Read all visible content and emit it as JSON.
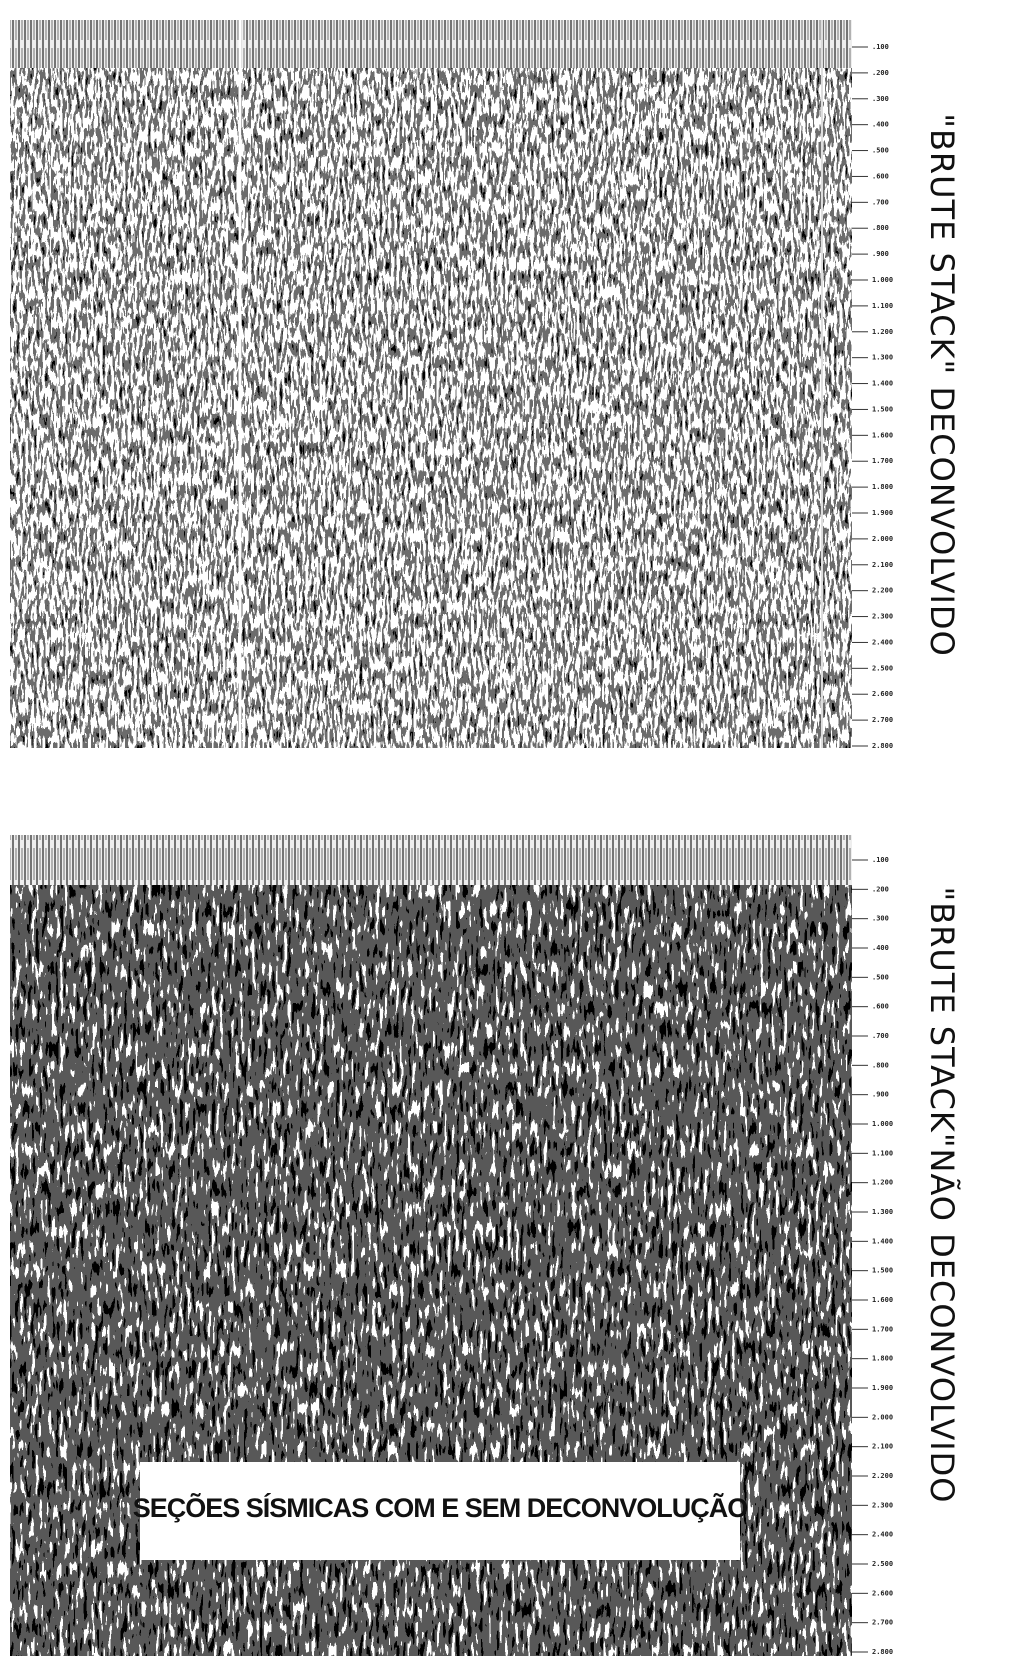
{
  "panels": [
    {
      "title": "\"BRUTE STACK\" DECONVOLVIDO",
      "time_labels": [
        ".100",
        ".200",
        ".300",
        ".400",
        ".500",
        ".600",
        ".700",
        ".800",
        ".900",
        "1.000",
        "1.100",
        "1.200",
        "1.300",
        "1.400",
        "1.500",
        "1.600",
        "1.700",
        "1.800",
        "1.900",
        "2.000",
        "2.100",
        "2.200",
        "2.300",
        "2.400",
        "2.500",
        "2.600",
        "2.700",
        "2.800"
      ]
    },
    {
      "title": "\"BRUTE STACK\"NÃO DECONVOLVIDO",
      "time_labels": [
        ".100",
        ".200",
        ".300",
        ".400",
        ".500",
        ".600",
        ".700",
        ".800",
        ".900",
        "1.000",
        "1.100",
        "1.200",
        "1.300",
        "1.400",
        "1.500",
        "1.600",
        "1.700",
        "1.800",
        "1.900",
        "2.000",
        "2.100",
        "2.200",
        "2.300",
        "2.400",
        "2.500",
        "2.600",
        "2.700",
        "2.800"
      ]
    }
  ],
  "caption": "SEÇÕES SÍSMICAS COM E SEM DECONVOLUÇÃO"
}
